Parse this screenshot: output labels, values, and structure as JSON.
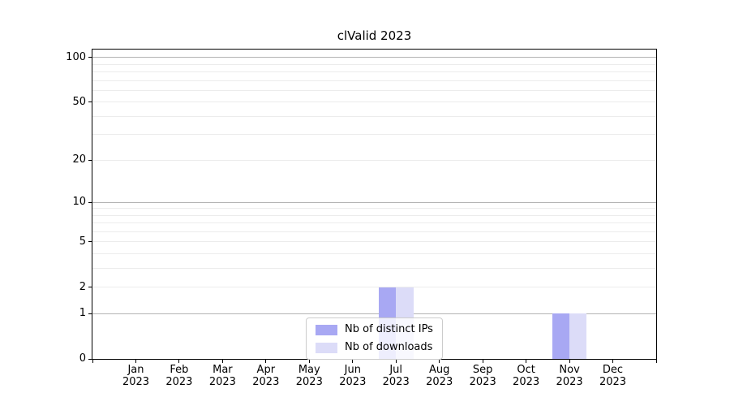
{
  "figure": {
    "title": "clValid 2023"
  },
  "chart_data": {
    "type": "bar",
    "title": "clValid 2023",
    "categories": [
      "Jan",
      "Feb",
      "Mar",
      "Apr",
      "May",
      "Jun",
      "Jul",
      "Aug",
      "Sep",
      "Oct",
      "Nov",
      "Dec"
    ],
    "category_year": "2023",
    "series": [
      {
        "name": "Nb of distinct IPs",
        "color": "#a8a8f3",
        "values": [
          0,
          0,
          0,
          0,
          0,
          0,
          2,
          0,
          0,
          0,
          1,
          0
        ]
      },
      {
        "name": "Nb of downloads",
        "color": "#dcdcf8",
        "values": [
          0,
          0,
          0,
          0,
          0,
          0,
          2,
          0,
          0,
          0,
          1,
          0
        ]
      }
    ],
    "yscale": "log10(value+1)",
    "ylim": [
      0,
      113
    ],
    "yticks": [
      0,
      1,
      2,
      5,
      10,
      20,
      50,
      100
    ],
    "major_gridlines": [
      1,
      10,
      100
    ],
    "minor_gridlines": [
      2,
      3,
      4,
      5,
      6,
      7,
      8,
      9,
      20,
      30,
      40,
      50,
      60,
      70,
      80,
      90
    ],
    "grid": "on",
    "legend_position": "lower center, inside axes",
    "axis_color": "#000000",
    "major_grid_color": "#b3b3b3",
    "minor_grid_color": "#ececec",
    "bar_group_width_fraction": 0.8
  }
}
